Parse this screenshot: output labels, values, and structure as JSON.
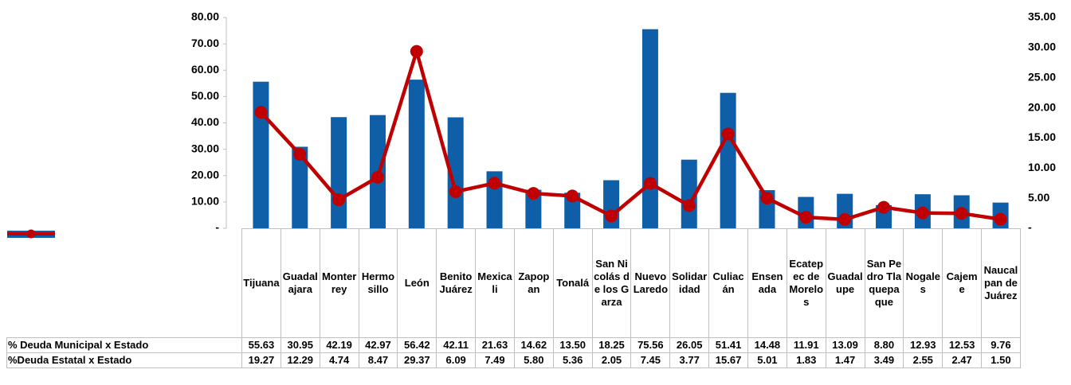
{
  "chart_data": {
    "type": "bar",
    "categories": [
      "Tijuana",
      "Guadalajara",
      "Monterrey",
      "Hermosillo",
      "León",
      "Benito Juárez",
      "Mexicali",
      "Zapopan",
      "Tonalá",
      "San Nicolás de los Garza",
      "Nuevo Laredo",
      "Solidaridad",
      "Culiacán",
      "Ensenada",
      "Ecatepec de Morelos",
      "Guadalupe",
      "San Pedro Tlaquepaque",
      "Nogales",
      "Cajeme",
      "Naucalpan de Juárez"
    ],
    "series": [
      {
        "name": "% Deuda Municipal x Estado",
        "type": "bar",
        "color": "#0f5fa8",
        "values": [
          55.63,
          30.95,
          42.19,
          42.97,
          56.42,
          42.11,
          21.63,
          14.62,
          13.5,
          18.25,
          75.56,
          26.05,
          51.41,
          14.48,
          11.91,
          13.09,
          8.8,
          12.93,
          12.53,
          9.76
        ],
        "value_labels": [
          "55.63",
          "30.95",
          "42.19",
          "42.97",
          "56.42",
          "42.11",
          "21.63",
          "14.62",
          "13.50",
          "18.25",
          "75.56",
          "26.05",
          "51.41",
          "14.48",
          "11.91",
          "13.09",
          "8.80",
          "12.93",
          "12.53",
          "9.76"
        ]
      },
      {
        "name": "%Deuda Estatal x Estado",
        "type": "line",
        "axis": "y2",
        "color": "#c00000",
        "values": [
          19.27,
          12.29,
          4.74,
          8.47,
          29.37,
          6.09,
          7.49,
          5.8,
          5.36,
          2.05,
          7.45,
          3.77,
          15.67,
          5.01,
          1.83,
          1.47,
          3.49,
          2.55,
          2.47,
          1.5
        ],
        "value_labels": [
          "19.27",
          "12.29",
          "4.74",
          "8.47",
          "29.37",
          "6.09",
          "7.49",
          "5.80",
          "5.36",
          "2.05",
          "7.45",
          "3.77",
          "15.67",
          "5.01",
          "1.83",
          "1.47",
          "3.49",
          "2.55",
          "2.47",
          "1.50"
        ]
      }
    ],
    "ylim": [
      0,
      80
    ],
    "yticks": [
      {
        "value": 0,
        "label": "-"
      },
      {
        "value": 10,
        "label": "10.00"
      },
      {
        "value": 20,
        "label": "20.00"
      },
      {
        "value": 30,
        "label": "30.00"
      },
      {
        "value": 40,
        "label": "40.00"
      },
      {
        "value": 50,
        "label": "50.00"
      },
      {
        "value": 60,
        "label": "60.00"
      },
      {
        "value": 70,
        "label": "70.00"
      },
      {
        "value": 80,
        "label": "80.00"
      }
    ],
    "y2lim": [
      0,
      35
    ],
    "y2ticks": [
      {
        "value": 0,
        "label": "-"
      },
      {
        "value": 5,
        "label": "5.00"
      },
      {
        "value": 10,
        "label": "10.00"
      },
      {
        "value": 15,
        "label": "15.00"
      },
      {
        "value": 20,
        "label": "20.00"
      },
      {
        "value": 25,
        "label": "25.00"
      },
      {
        "value": 30,
        "label": "30.00"
      },
      {
        "value": 35,
        "label": "35.00"
      }
    ]
  }
}
